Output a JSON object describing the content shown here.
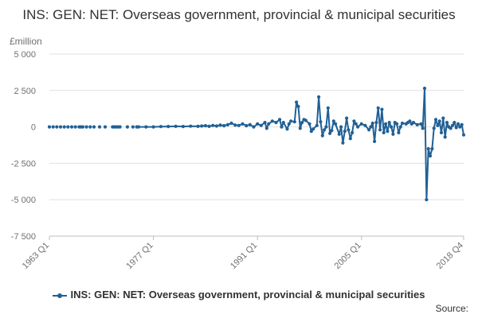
{
  "title": "INS: GEN: NET: Overseas government, provincial & municipal securities",
  "source_label": "Source:",
  "chart_data": {
    "type": "line",
    "title": "INS: GEN: NET: Overseas government, provincial & municipal securities",
    "ylabel": "£million",
    "xlabel": "",
    "ylim": [
      -7500,
      5000
    ],
    "yticks": [
      5000,
      2500,
      0,
      -2500,
      -5000,
      -7500
    ],
    "ytick_labels": [
      "5 000",
      "2 500",
      "0",
      "-2 500",
      "-5 000",
      "-7 500"
    ],
    "xrange": [
      "1963 Q1",
      "2018 Q4"
    ],
    "xticks": [
      "1963 Q1",
      "1977 Q1",
      "1991 Q1",
      "2005 Q1",
      "2018 Q4"
    ],
    "grid": true,
    "legend_position": "bottom",
    "series_color": "#206095",
    "series": [
      {
        "name": "INS: GEN: NET: Overseas government, provincial & municipal securities",
        "points": [
          [
            "1963 Q1",
            0
          ],
          [
            "1963 Q3",
            0
          ],
          [
            "1964 Q1",
            0
          ],
          [
            "1964 Q3",
            0
          ],
          [
            "1965 Q1",
            0
          ],
          [
            "1965 Q3",
            0
          ],
          [
            "1966 Q1",
            0
          ],
          [
            "1966 Q3",
            0
          ],
          [
            "1967 Q1",
            0
          ],
          [
            "1967 Q2",
            0
          ],
          [
            "1967 Q3",
            0
          ],
          [
            "1968 Q1",
            0
          ],
          [
            "1968 Q3",
            0
          ],
          [
            "1969 Q1",
            0
          ],
          [
            "1969 Q4",
            0
          ],
          [
            "1970 Q3",
            0
          ],
          [
            "1971 Q3",
            0
          ],
          [
            "1971 Q4",
            0
          ],
          [
            "1972 Q1",
            0
          ],
          [
            "1972 Q2",
            0
          ],
          [
            "1972 Q3",
            0
          ],
          [
            "1973 Q3",
            0
          ],
          [
            "1974 Q2",
            0
          ],
          [
            "1974 Q4",
            0
          ],
          [
            "1975 Q1",
            0
          ],
          [
            "1976 Q1",
            0
          ],
          [
            "1977 Q1",
            0
          ],
          [
            "1978 Q1",
            20
          ],
          [
            "1979 Q1",
            30
          ],
          [
            "1980 Q1",
            40
          ],
          [
            "1981 Q1",
            30
          ],
          [
            "1982 Q1",
            50
          ],
          [
            "1983 Q1",
            40
          ],
          [
            "1983 Q3",
            60
          ],
          [
            "1984 Q1",
            80
          ],
          [
            "1984 Q3",
            40
          ],
          [
            "1985 Q1",
            100
          ],
          [
            "1985 Q3",
            60
          ],
          [
            "1986 Q1",
            120
          ],
          [
            "1986 Q3",
            80
          ],
          [
            "1987 Q1",
            150
          ],
          [
            "1987 Q3",
            250
          ],
          [
            "1988 Q1",
            120
          ],
          [
            "1988 Q3",
            100
          ],
          [
            "1989 Q1",
            200
          ],
          [
            "1989 Q3",
            80
          ],
          [
            "1990 Q1",
            150
          ],
          [
            "1990 Q3",
            0
          ],
          [
            "1991 Q1",
            200
          ],
          [
            "1991 Q3",
            100
          ],
          [
            "1992 Q1",
            300
          ],
          [
            "1992 Q2",
            -100
          ],
          [
            "1992 Q3",
            200
          ],
          [
            "1993 Q1",
            400
          ],
          [
            "1993 Q3",
            300
          ],
          [
            "1994 Q1",
            500
          ],
          [
            "1994 Q2",
            0
          ],
          [
            "1994 Q3",
            300
          ],
          [
            "1995 Q1",
            -150
          ],
          [
            "1995 Q2",
            200
          ],
          [
            "1995 Q3",
            400
          ],
          [
            "1996 Q1",
            350
          ],
          [
            "1996 Q2",
            1700
          ],
          [
            "1996 Q3",
            1400
          ],
          [
            "1996 Q4",
            -100
          ],
          [
            "1997 Q1",
            300
          ],
          [
            "1997 Q2",
            500
          ],
          [
            "1997 Q3",
            450
          ],
          [
            "1998 Q1",
            200
          ],
          [
            "1998 Q2",
            -300
          ],
          [
            "1998 Q3",
            -150
          ],
          [
            "1999 Q1",
            100
          ],
          [
            "1999 Q2",
            2050
          ],
          [
            "1999 Q3",
            350
          ],
          [
            "1999 Q4",
            -600
          ],
          [
            "2000 Q1",
            -200
          ],
          [
            "2000 Q2",
            0
          ],
          [
            "2000 Q3",
            1300
          ],
          [
            "2000 Q4",
            -450
          ],
          [
            "2001 Q1",
            -250
          ],
          [
            "2001 Q2",
            400
          ],
          [
            "2001 Q3",
            200
          ],
          [
            "2002 Q1",
            -500
          ],
          [
            "2002 Q2",
            0
          ],
          [
            "2002 Q3",
            -1100
          ],
          [
            "2002 Q4",
            -300
          ],
          [
            "2003 Q1",
            600
          ],
          [
            "2003 Q2",
            -200
          ],
          [
            "2003 Q3",
            -800
          ],
          [
            "2003 Q4",
            -400
          ],
          [
            "2004 Q1",
            400
          ],
          [
            "2004 Q2",
            200
          ],
          [
            "2004 Q3",
            0
          ],
          [
            "2005 Q1",
            200
          ],
          [
            "2005 Q3",
            100
          ],
          [
            "2006 Q1",
            -200
          ],
          [
            "2006 Q2",
            0
          ],
          [
            "2006 Q3",
            250
          ],
          [
            "2006 Q4",
            -1000
          ],
          [
            "2007 Q1",
            300
          ],
          [
            "2007 Q2",
            1300
          ],
          [
            "2007 Q3",
            -200
          ],
          [
            "2007 Q4",
            1200
          ],
          [
            "2008 Q1",
            -400
          ],
          [
            "2008 Q2",
            200
          ],
          [
            "2008 Q3",
            -300
          ],
          [
            "2008 Q4",
            300
          ],
          [
            "2009 Q1",
            0
          ],
          [
            "2009 Q2",
            -500
          ],
          [
            "2009 Q3",
            300
          ],
          [
            "2009 Q4",
            200
          ],
          [
            "2010 Q1",
            -400
          ],
          [
            "2010 Q2",
            0
          ],
          [
            "2010 Q3",
            250
          ],
          [
            "2011 Q1",
            200
          ],
          [
            "2011 Q2",
            300
          ],
          [
            "2011 Q3",
            400
          ],
          [
            "2011 Q4",
            200
          ],
          [
            "2012 Q1",
            300
          ],
          [
            "2012 Q3",
            150
          ],
          [
            "2013 Q1",
            200
          ],
          [
            "2013 Q2",
            -100
          ],
          [
            "2013 Q3",
            2650
          ],
          [
            "2013 Q4",
            -5000
          ],
          [
            "2014 Q1",
            -1500
          ],
          [
            "2014 Q2",
            -2000
          ],
          [
            "2014 Q3",
            -1500
          ],
          [
            "2014 Q4",
            -100
          ],
          [
            "2015 Q1",
            500
          ],
          [
            "2015 Q2",
            100
          ],
          [
            "2015 Q3",
            400
          ],
          [
            "2015 Q4",
            -400
          ],
          [
            "2016 Q1",
            600
          ],
          [
            "2016 Q2",
            -700
          ],
          [
            "2016 Q3",
            300
          ],
          [
            "2016 Q4",
            0
          ],
          [
            "2017 Q1",
            -100
          ],
          [
            "2017 Q2",
            100
          ],
          [
            "2017 Q3",
            300
          ],
          [
            "2017 Q4",
            -50
          ],
          [
            "2018 Q1",
            200
          ],
          [
            "2018 Q2",
            0
          ],
          [
            "2018 Q3",
            150
          ],
          [
            "2018 Q4",
            -550
          ]
        ],
        "gaps_after": [
          "1963 Q1",
          "1963 Q3",
          "1964 Q1",
          "1964 Q3",
          "1965 Q1",
          "1965 Q3",
          "1966 Q1",
          "1966 Q3",
          "1967 Q3",
          "1968 Q1",
          "1968 Q3",
          "1969 Q1",
          "1969 Q4",
          "1970 Q3",
          "1972 Q3",
          "1973 Q3",
          "1974 Q2",
          "1974 Q4"
        ]
      }
    ]
  }
}
